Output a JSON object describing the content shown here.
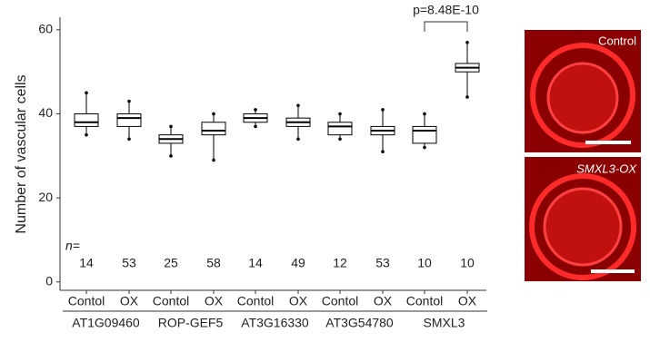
{
  "chart_data": {
    "type": "box",
    "ylabel": "Number of vascular cells",
    "categories": [
      "Contol",
      "OX",
      "Contol",
      "OX",
      "Contol",
      "OX",
      "Contol",
      "OX",
      "Contol",
      "OX"
    ],
    "groups": [
      "AT1G09460",
      "ROP-GEF5",
      "AT3G16330",
      "AT3G54780",
      "SMXL3"
    ],
    "n_label": "n=",
    "n": [
      14,
      53,
      25,
      58,
      14,
      49,
      12,
      53,
      10,
      10
    ],
    "whisker_low": [
      35,
      34,
      30,
      29,
      37,
      34,
      34,
      31,
      32,
      44
    ],
    "q1": [
      37,
      37,
      33,
      35,
      38,
      37,
      35,
      35,
      33,
      50
    ],
    "median": [
      38,
      39,
      34,
      36,
      39,
      38,
      37,
      36,
      36,
      51
    ],
    "q3": [
      40,
      40,
      35,
      38,
      40,
      39,
      38,
      37,
      37,
      52
    ],
    "whisker_high": [
      45,
      43,
      37,
      40,
      41,
      42,
      40,
      41,
      40,
      57
    ],
    "color": "#000000",
    "annotation": "p=8.48E-10",
    "ylim": [
      -2,
      63
    ],
    "yticks": [
      0,
      20,
      40,
      60
    ]
  },
  "panels": [
    {
      "label": "Control"
    },
    {
      "label": "SMXL3-OX"
    }
  ]
}
